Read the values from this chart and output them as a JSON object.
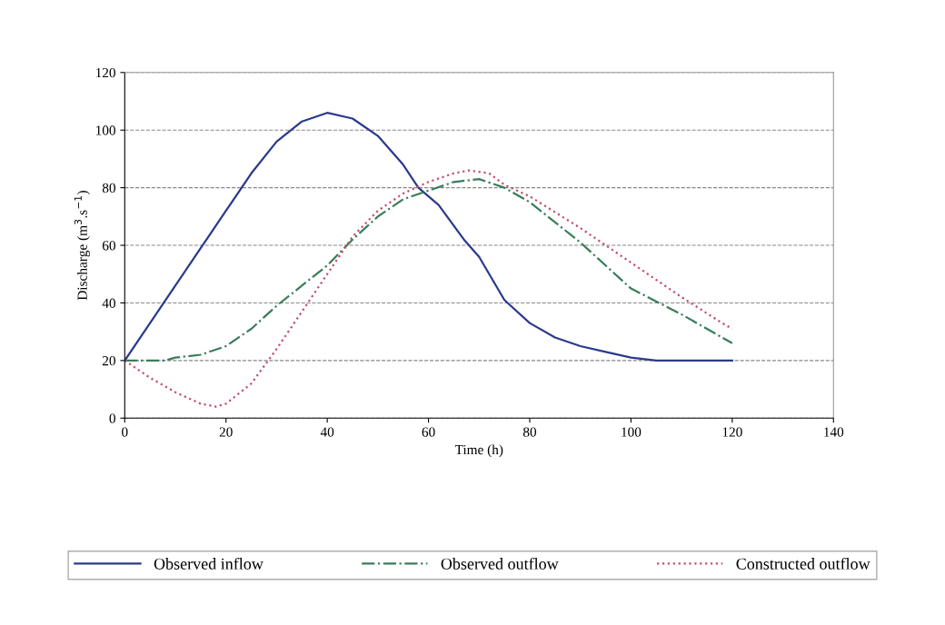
{
  "chart_data": {
    "type": "line",
    "xlabel": "Time (h)",
    "ylabel": "Discharge (m$^{3}$.s$^{−1}$)",
    "xlim": [
      0,
      140
    ],
    "xticks": [
      0,
      20,
      40,
      60,
      80,
      100,
      120,
      140
    ],
    "ylim": [
      0,
      120
    ],
    "yticks": [
      0,
      20,
      40,
      60,
      80,
      100,
      120
    ],
    "grid": "y",
    "legend": "bottom",
    "marker": "none",
    "series": [
      {
        "name": "Observed inflow",
        "color": "#2b3a8c",
        "line_style": "solid",
        "x": [
          0,
          5,
          10,
          15,
          20,
          25,
          30,
          35,
          40,
          45,
          50,
          55,
          58,
          62,
          67,
          70,
          75,
          80,
          85,
          90,
          95,
          100,
          105,
          110,
          115,
          120
        ],
        "values": [
          20,
          33,
          46,
          59,
          72,
          85,
          96,
          103,
          106,
          104,
          98,
          88,
          80,
          74,
          62,
          56,
          41,
          33,
          28,
          25,
          23,
          21,
          20,
          20,
          20,
          20
        ]
      },
      {
        "name": "Observed outflow",
        "color": "#3a7d5a",
        "line_style": "dashdot",
        "x": [
          0,
          8,
          10,
          15,
          20,
          25,
          30,
          35,
          40,
          45,
          50,
          55,
          60,
          65,
          70,
          75,
          80,
          90,
          100,
          110,
          120
        ],
        "values": [
          20,
          20,
          21,
          22,
          25,
          31,
          39,
          46,
          53,
          62,
          70,
          76,
          79,
          82,
          83,
          80,
          75,
          61,
          45,
          36,
          26
        ]
      },
      {
        "name": "Constructed outflow",
        "color": "#c0506a",
        "line_style": "dotted",
        "x": [
          0,
          5,
          10,
          15,
          18,
          20,
          25,
          30,
          35,
          40,
          45,
          50,
          55,
          60,
          65,
          68,
          72,
          75,
          80,
          90,
          100,
          110,
          118,
          120
        ],
        "values": [
          20,
          14,
          9,
          5,
          4,
          5,
          12,
          24,
          37,
          50,
          63,
          72,
          78,
          82,
          85,
          86,
          85,
          81,
          77,
          66,
          54,
          42,
          33,
          31
        ]
      }
    ]
  }
}
